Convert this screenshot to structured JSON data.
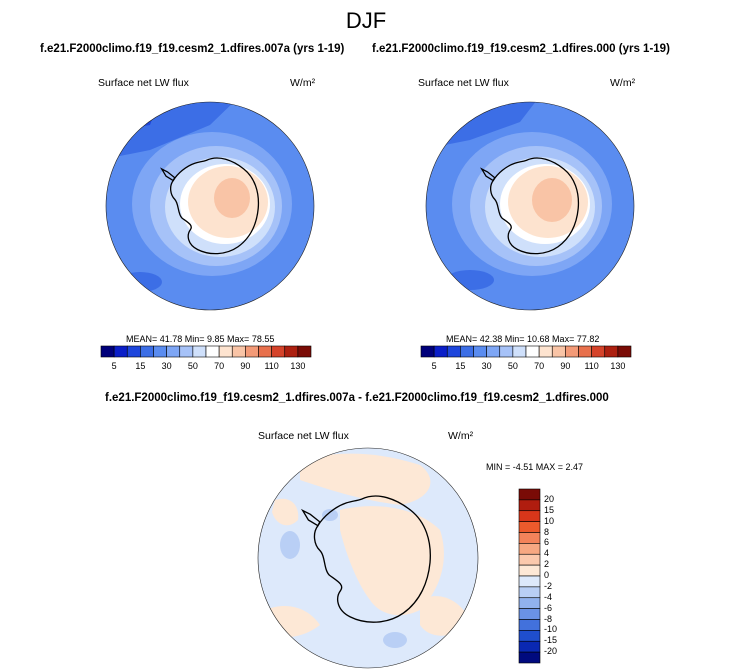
{
  "season": "DJF",
  "chart_data": [
    {
      "type": "heatmap",
      "projection": "south-polar-stereographic",
      "title": "f.e21.F2000climo.f19_f19.cesm2_1.dfires.007a (yrs 1-19)",
      "variable": "Surface net LW flux",
      "units": "W/m²",
      "stats_text": "MEAN= 41.78  Min=  9.85  Max= 78.55",
      "stats": {
        "mean": 41.78,
        "min": 9.85,
        "max": 78.55
      },
      "colorbar": {
        "orientation": "horizontal",
        "levels": [
          5,
          10,
          15,
          20,
          30,
          40,
          50,
          60,
          70,
          80,
          90,
          100,
          110,
          120,
          130
        ],
        "tick_labels": [
          "5",
          "15",
          "30",
          "50",
          "70",
          "90",
          "110",
          "130"
        ]
      }
    },
    {
      "type": "heatmap",
      "projection": "south-polar-stereographic",
      "title": "f.e21.F2000climo.f19_f19.cesm2_1.dfires.000 (yrs 1-19)",
      "variable": "Surface net LW flux",
      "units": "W/m²",
      "stats_text": "MEAN= 42.38  Min= 10.68  Max= 77.82",
      "stats": {
        "mean": 42.38,
        "min": 10.68,
        "max": 77.82
      },
      "colorbar": {
        "orientation": "horizontal",
        "levels": [
          5,
          10,
          15,
          20,
          30,
          40,
          50,
          60,
          70,
          80,
          90,
          100,
          110,
          120,
          130
        ],
        "tick_labels": [
          "5",
          "15",
          "30",
          "50",
          "70",
          "90",
          "110",
          "130"
        ]
      }
    },
    {
      "type": "heatmap",
      "projection": "south-polar-stereographic",
      "title": "f.e21.F2000climo.f19_f19.cesm2_1.dfires.007a - f.e21.F2000climo.f19_f19.cesm2_1.dfires.000",
      "variable": "Surface net LW flux",
      "units": "W/m²",
      "stats_text": "MIN = -4.51 MAX =  2.47",
      "stats": {
        "min": -4.51,
        "max": 2.47
      },
      "colorbar": {
        "orientation": "vertical",
        "tick_labels": [
          "20",
          "15",
          "10",
          "8",
          "6",
          "4",
          "2",
          "0",
          "-2",
          "-4",
          "-6",
          "-8",
          "-10",
          "-15",
          "-20"
        ]
      }
    }
  ],
  "colors": {
    "seq": [
      "#00007a",
      "#0a1ec8",
      "#1e46dc",
      "#3c6ee6",
      "#5a8cf0",
      "#7ea6f5",
      "#a6c2f8",
      "#cfe0fb",
      "#ffffff",
      "#fde3cf",
      "#f9c4a6",
      "#f39a77",
      "#e8704c",
      "#d5432a",
      "#ad2010",
      "#7a0b06"
    ],
    "diff": [
      "#7a0b06",
      "#b01d0f",
      "#d8361a",
      "#ec5a2c",
      "#f3835a",
      "#f7a882",
      "#fbc9ad",
      "#fde8d6",
      "#dde9fb",
      "#b9cff5",
      "#91b2ee",
      "#6a92e6",
      "#4271dc",
      "#1f4ecd",
      "#0a28b2",
      "#000a7e"
    ]
  }
}
